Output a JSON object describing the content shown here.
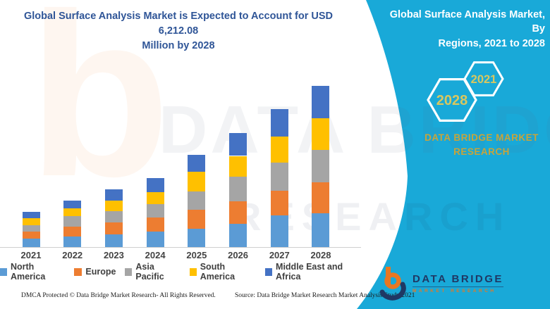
{
  "titles": {
    "left": {
      "line1": "Global Surface Analysis Market is Expected to Account for USD 6,212.08",
      "line2": "Million by 2028"
    },
    "right": {
      "line1": "Global Surface Analysis Market, By",
      "line2": "Regions, 2021 to 2028"
    }
  },
  "hexagons": {
    "large_year": "2028",
    "small_year": "2021"
  },
  "brand": {
    "panel_line1": "DATA BRIDGE MARKET",
    "panel_line2": "RESEARCH",
    "logo_name": "DATA BRIDGE",
    "logo_sub": "MARKET RESEARCH"
  },
  "footer": {
    "dmca": "DMCA Protected © Data Bridge Market Research- All Rights Reserved.",
    "source": "Source: Data Bridge Market Research Market Analysis Study 2021"
  },
  "watermarks": {
    "letter": "b",
    "text": "DATA BRIDGE",
    "text2": "RESEARCH"
  },
  "colors": {
    "teal": "#19A9D8",
    "title_blue": "#2F5597",
    "gold": "#C7A43B",
    "hex_year_gold": "#D8C75F",
    "logo_navy": "#1F3864",
    "logo_orange": "#E87722",
    "axis_line": "#cfcfcf"
  },
  "chart_data": {
    "type": "bar",
    "stacked": true,
    "title": "Global Surface Analysis Market is Expected to Account for USD 6,212.08 Million by 2028",
    "unit": "USD Million",
    "xlabel": "",
    "ylabel": "",
    "ylim": [
      0,
      6600
    ],
    "grid": false,
    "legend_position": "bottom",
    "categories": [
      "2021",
      "2022",
      "2023",
      "2024",
      "2025",
      "2026",
      "2027",
      "2028"
    ],
    "series": [
      {
        "name": "North America",
        "color": "#5B9BD5",
        "values": [
          316,
          413,
          494,
          586,
          702,
          899,
          1215,
          1292.08
        ]
      },
      {
        "name": "Europe",
        "color": "#ED7D31",
        "values": [
          278,
          378,
          451,
          548,
          748,
          856,
          945,
          1190
        ]
      },
      {
        "name": "Asia Pacific",
        "color": "#A5A5A5",
        "values": [
          243,
          405,
          451,
          532,
          694,
          945,
          1080,
          1245
        ]
      },
      {
        "name": "South America",
        "color": "#FFC000",
        "values": [
          270,
          297,
          386,
          459,
          748,
          810,
          1018,
          1220
        ]
      },
      {
        "name": "Middle East and Africa",
        "color": "#4472C4",
        "values": [
          243,
          308,
          432,
          540,
          648,
          891,
          1053,
          1265
        ]
      }
    ],
    "totals": [
      1350,
      1801,
      2214,
      2665,
      3540,
      4401,
      5311,
      6212.08
    ]
  }
}
